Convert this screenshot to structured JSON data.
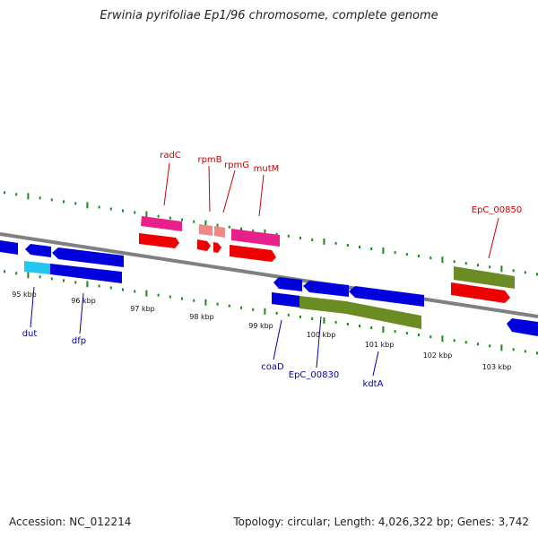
{
  "title": "Erwinia pyrifoliae Ep1/96 chromosome, complete genome",
  "footer": {
    "accession": "Accession: NC_012214",
    "summary": "Topology: circular; Length: 4,026,322 bp; Genes: 3,742"
  },
  "colors": {
    "backbone": "#808080",
    "tick": "#1a8a1a",
    "gene_red_label": "#cc0000",
    "gene_blue_label": "#0000aa",
    "blue_gene": "#0000dd",
    "cyan_gene": "#22c8f0",
    "pink_gene": "#e8208c",
    "red_gene": "#ee0000",
    "light_red_gene": "#ee8888",
    "olive_gene": "#6b8c22"
  },
  "kbp_labels": [
    "95 kbp",
    "96 kbp",
    "97 kbp",
    "98 kbp",
    "99 kbp",
    "100 kbp",
    "101 kbp",
    "102 kbp",
    "103 kbp"
  ],
  "gene_labels_top": [
    "radC",
    "rpmB",
    "rpmG",
    "mutM",
    "EpC_00850"
  ],
  "gene_labels_bottom": [
    "dut",
    "dfp",
    "coaD",
    "EpC_00830",
    "kdtA"
  ]
}
